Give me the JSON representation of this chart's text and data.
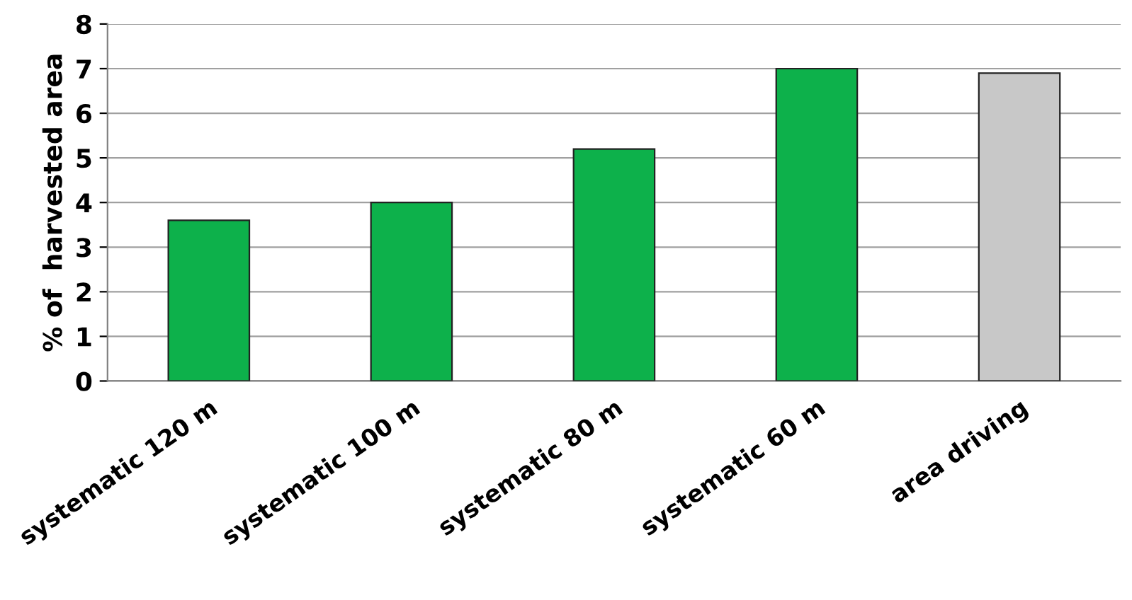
{
  "chart_data": {
    "type": "bar",
    "ylabel": "% of  harvested area",
    "categories": [
      "systematic 120 m",
      "systematic 100 m",
      "systematic 80 m",
      "systematic 60 m",
      "area driving"
    ],
    "values": [
      3.6,
      4.0,
      5.2,
      7.0,
      6.9
    ],
    "colors": [
      "#0db14b",
      "#0db14b",
      "#0db14b",
      "#0db14b",
      "#c8c8c8"
    ],
    "ylim": [
      0,
      8
    ],
    "yticks": [
      0,
      1,
      2,
      3,
      4,
      5,
      6,
      7,
      8
    ],
    "grid": "y"
  }
}
